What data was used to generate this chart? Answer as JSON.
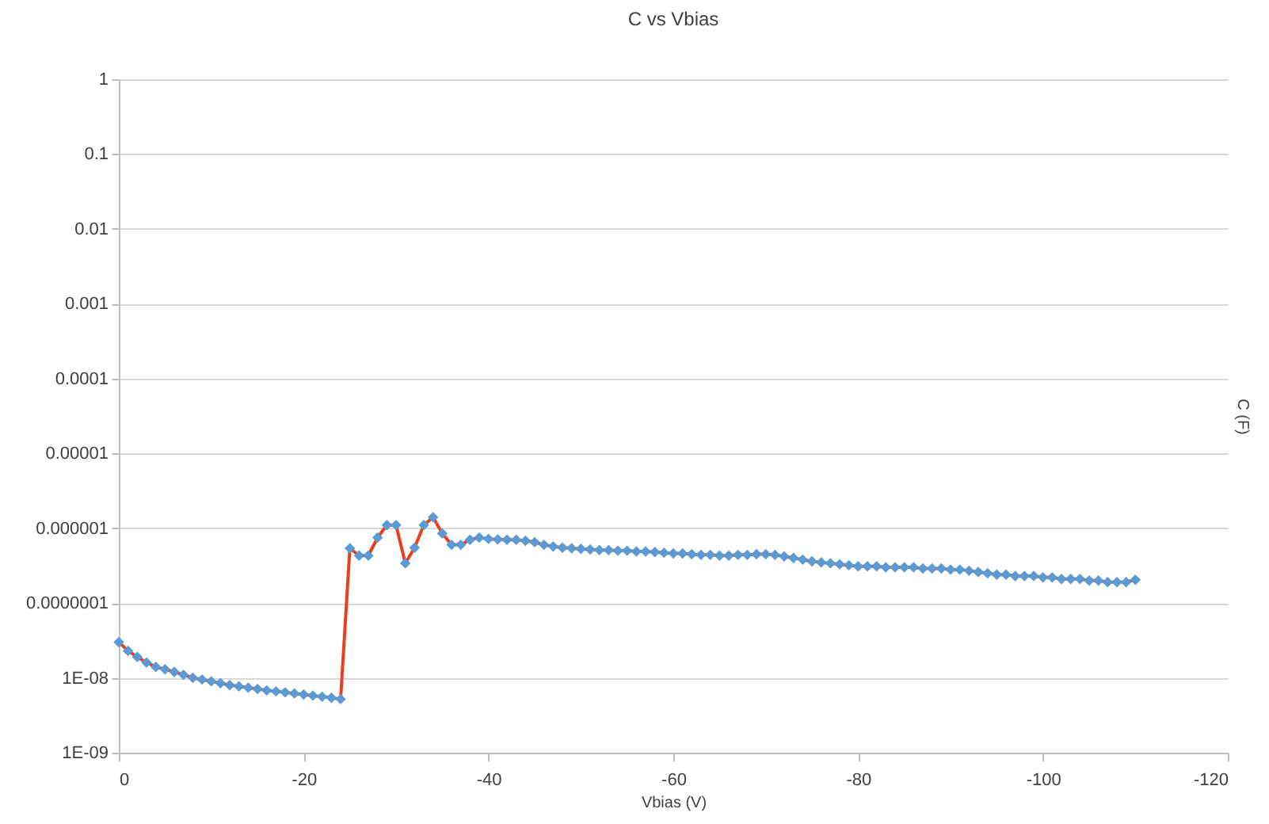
{
  "chart_data": {
    "type": "line",
    "title": "C vs Vbias",
    "xlabel": "Vbias (V)",
    "ylabel": "C (F)",
    "x": [
      0,
      -1,
      -2,
      -3,
      -4,
      -5,
      -6,
      -7,
      -8,
      -9,
      -10,
      -11,
      -12,
      -13,
      -14,
      -15,
      -16,
      -17,
      -18,
      -19,
      -20,
      -21,
      -22,
      -23,
      -24,
      -25,
      -26,
      -27,
      -28,
      -29,
      -30,
      -31,
      -32,
      -33,
      -34,
      -35,
      -36,
      -37,
      -38,
      -39,
      -40,
      -41,
      -42,
      -43,
      -44,
      -45,
      -46,
      -47,
      -48,
      -49,
      -50,
      -51,
      -52,
      -53,
      -54,
      -55,
      -56,
      -57,
      -58,
      -59,
      -60,
      -61,
      -62,
      -63,
      -64,
      -65,
      -66,
      -67,
      -68,
      -69,
      -70,
      -71,
      -72,
      -73,
      -74,
      -75,
      -76,
      -77,
      -78,
      -79,
      -80,
      -81,
      -82,
      -83,
      -84,
      -85,
      -86,
      -87,
      -88,
      -89,
      -90,
      -91,
      -92,
      -93,
      -94,
      -95,
      -96,
      -97,
      -98,
      -99,
      -100,
      -101,
      -102,
      -103,
      -104,
      -105,
      -106,
      -107,
      -108,
      -109,
      -110
    ],
    "series": [
      {
        "type": "line",
        "color": "#e8401c",
        "marker": "none",
        "values": [
          3e-08,
          2.3e-08,
          1.9e-08,
          1.6e-08,
          1.4e-08,
          1.3e-08,
          1.2e-08,
          1.1e-08,
          1e-08,
          9.5e-09,
          9e-09,
          8.5e-09,
          8e-09,
          7.7e-09,
          7.4e-09,
          7.1e-09,
          6.8e-09,
          6.6e-09,
          6.4e-09,
          6.2e-09,
          6e-09,
          5.8e-09,
          5.6e-09,
          5.4e-09,
          5.2e-09,
          5.4e-07,
          4.3e-07,
          4.3e-07,
          7.5e-07,
          1.1e-06,
          1.1e-06,
          3.4e-07,
          5.5e-07,
          1.1e-06,
          1.4e-06,
          8.5e-07,
          6e-07,
          6e-07,
          7e-07,
          7.5e-07,
          7.2e-07,
          7.1e-07,
          7e-07,
          7e-07,
          6.8e-07,
          6.5e-07,
          6e-07,
          5.7e-07,
          5.5e-07,
          5.4e-07,
          5.3e-07,
          5.2e-07,
          5.1e-07,
          5.1e-07,
          5e-07,
          5e-07,
          4.9e-07,
          4.9e-07,
          4.8e-07,
          4.7e-07,
          4.6e-07,
          4.6e-07,
          4.5e-07,
          4.4e-07,
          4.4e-07,
          4.3e-07,
          4.3e-07,
          4.4e-07,
          4.4e-07,
          4.5e-07,
          4.5e-07,
          4.4e-07,
          4.2e-07,
          4e-07,
          3.8e-07,
          3.6e-07,
          3.5e-07,
          3.4e-07,
          3.3e-07,
          3.2e-07,
          3.1e-07,
          3.1e-07,
          3.1e-07,
          3e-07,
          3e-07,
          3e-07,
          3e-07,
          2.9e-07,
          2.9e-07,
          2.9e-07,
          2.8e-07,
          2.8e-07,
          2.7e-07,
          2.6e-07,
          2.5e-07,
          2.4e-07,
          2.4e-07,
          2.3e-07,
          2.3e-07,
          2.3e-07,
          2.2e-07,
          2.2e-07,
          2.1e-07,
          2.1e-07,
          2.1e-07,
          2e-07,
          2e-07,
          1.9e-07,
          1.9e-07,
          1.9e-07,
          2.05e-07
        ]
      },
      {
        "type": "scatter",
        "color": "#5b9bd5",
        "marker": "diamond",
        "values": [
          3e-08,
          2.3e-08,
          1.9e-08,
          1.6e-08,
          1.4e-08,
          1.3e-08,
          1.2e-08,
          1.1e-08,
          1e-08,
          9.5e-09,
          9e-09,
          8.5e-09,
          8e-09,
          7.7e-09,
          7.4e-09,
          7.1e-09,
          6.8e-09,
          6.6e-09,
          6.4e-09,
          6.2e-09,
          6e-09,
          5.8e-09,
          5.6e-09,
          5.4e-09,
          5.2e-09,
          5.4e-07,
          4.3e-07,
          4.3e-07,
          7.5e-07,
          1.1e-06,
          1.1e-06,
          3.4e-07,
          5.5e-07,
          1.1e-06,
          1.4e-06,
          8.5e-07,
          6e-07,
          6e-07,
          7e-07,
          7.5e-07,
          7.2e-07,
          7.1e-07,
          7e-07,
          7e-07,
          6.8e-07,
          6.5e-07,
          6e-07,
          5.7e-07,
          5.5e-07,
          5.4e-07,
          5.3e-07,
          5.2e-07,
          5.1e-07,
          5.1e-07,
          5e-07,
          5e-07,
          4.9e-07,
          4.9e-07,
          4.8e-07,
          4.7e-07,
          4.6e-07,
          4.6e-07,
          4.5e-07,
          4.4e-07,
          4.4e-07,
          4.3e-07,
          4.3e-07,
          4.4e-07,
          4.4e-07,
          4.5e-07,
          4.5e-07,
          4.4e-07,
          4.2e-07,
          4e-07,
          3.8e-07,
          3.6e-07,
          3.5e-07,
          3.4e-07,
          3.3e-07,
          3.2e-07,
          3.1e-07,
          3.1e-07,
          3.1e-07,
          3e-07,
          3e-07,
          3e-07,
          3e-07,
          2.9e-07,
          2.9e-07,
          2.9e-07,
          2.8e-07,
          2.8e-07,
          2.7e-07,
          2.6e-07,
          2.5e-07,
          2.4e-07,
          2.4e-07,
          2.3e-07,
          2.3e-07,
          2.3e-07,
          2.2e-07,
          2.2e-07,
          2.1e-07,
          2.1e-07,
          2.1e-07,
          2e-07,
          2e-07,
          1.9e-07,
          1.9e-07,
          1.9e-07,
          2.05e-07
        ]
      }
    ],
    "xlim": [
      0,
      -120
    ],
    "xticks": [
      0,
      -20,
      -40,
      -60,
      -80,
      -100,
      -120
    ],
    "ylim": [
      1e-09,
      1
    ],
    "yticks": [
      {
        "value": 1,
        "label": "1"
      },
      {
        "value": 0.1,
        "label": "0.1"
      },
      {
        "value": 0.01,
        "label": "0.01"
      },
      {
        "value": 0.001,
        "label": "0.001"
      },
      {
        "value": 0.0001,
        "label": "0.0001"
      },
      {
        "value": 1e-05,
        "label": "0.00001"
      },
      {
        "value": 1e-06,
        "label": "0.000001"
      },
      {
        "value": 1e-07,
        "label": "0.0000001"
      },
      {
        "value": 1e-08,
        "label": "1E-08"
      },
      {
        "value": 1e-09,
        "label": "1E-09"
      }
    ],
    "log": "y",
    "grid": "y",
    "line_style": "solid"
  }
}
